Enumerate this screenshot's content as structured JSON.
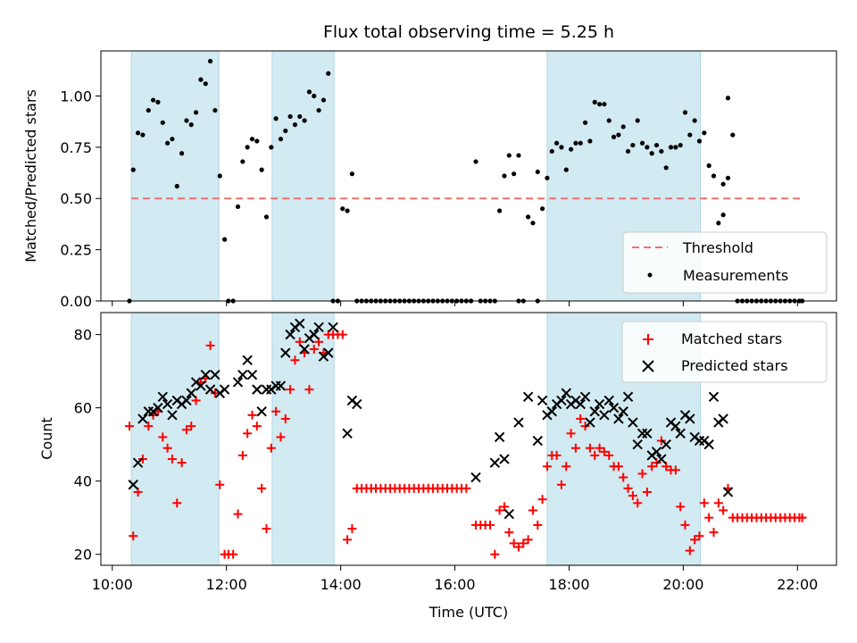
{
  "chart_data": [
    {
      "type": "scatter",
      "title": "Flux total observing time = 5.25 h",
      "xlabel": "",
      "ylabel": "Matched/Predicted stars",
      "ylim": [
        0,
        1.22
      ],
      "yticks": [
        "0.00",
        "0.25",
        "0.50",
        "0.75",
        "1.00"
      ],
      "ytick_values": [
        0,
        0.25,
        0.5,
        0.75,
        1.0
      ],
      "legend_position": "lower-right",
      "threshold": {
        "name": "Threshold",
        "value": 0.5,
        "x_range": [
          "10:20",
          "22:05"
        ],
        "color": "#f07070"
      },
      "series": [
        {
          "name": "Measurements",
          "color": "#000000",
          "marker": "dot",
          "x": [
            "10:18",
            "10:22",
            "10:27",
            "10:32",
            "10:38",
            "10:43",
            "10:48",
            "10:53",
            "10:58",
            "11:03",
            "11:08",
            "11:13",
            "11:18",
            "11:23",
            "11:28",
            "11:33",
            "11:38",
            "11:43",
            "11:48",
            "11:53",
            "11:58",
            "12:02",
            "12:07",
            "12:12",
            "12:17",
            "12:22",
            "12:27",
            "12:32",
            "12:37",
            "12:42",
            "12:47",
            "12:52",
            "12:57",
            "13:02",
            "13:07",
            "13:12",
            "13:17",
            "13:22",
            "13:27",
            "13:32",
            "13:37",
            "13:42",
            "13:47",
            "13:52",
            "13:57",
            "14:02",
            "14:07",
            "14:12",
            "14:17",
            "14:22",
            "16:22",
            "16:42",
            "16:47",
            "16:52",
            "16:57",
            "17:02",
            "17:07",
            "17:12",
            "17:17",
            "17:22",
            "17:27",
            "17:32",
            "17:37",
            "17:42",
            "17:47",
            "17:52",
            "17:57",
            "18:02",
            "18:07",
            "18:12",
            "18:17",
            "18:22",
            "18:27",
            "18:32",
            "18:37",
            "18:42",
            "18:47",
            "18:52",
            "18:57",
            "19:02",
            "19:07",
            "19:12",
            "19:17",
            "19:22",
            "19:27",
            "19:32",
            "19:37",
            "19:42",
            "19:47",
            "19:52",
            "19:57",
            "20:02",
            "20:07",
            "20:12",
            "20:17",
            "20:22",
            "20:27",
            "20:32",
            "20:37",
            "20:42",
            "20:47"
          ],
          "y": [
            0.0,
            0.64,
            0.82,
            0.81,
            0.93,
            0.98,
            0.97,
            0.87,
            0.77,
            0.79,
            0.56,
            0.72,
            0.88,
            0.86,
            0.92,
            1.08,
            1.06,
            1.17,
            0.93,
            0.61,
            0.3,
            0.0,
            0.0,
            0.46,
            0.68,
            0.75,
            0.79,
            0.78,
            0.64,
            0.41,
            0.75,
            0.89,
            0.79,
            0.83,
            0.9,
            0.86,
            0.9,
            0.88,
            1.02,
            1.0,
            0.93,
            0.98,
            1.11,
            0.0,
            0.0,
            0.45,
            0.44,
            0.62,
            0.0,
            0.0,
            0.68,
            0.0,
            0.44,
            0.61,
            0.71,
            0.62,
            0.71,
            0.0,
            0.41,
            0.38,
            0.63,
            0.45,
            0.6,
            0.73,
            0.77,
            0.75,
            0.64,
            0.74,
            0.77,
            0.77,
            0.87,
            0.78,
            0.97,
            0.96,
            0.96,
            0.88,
            0.8,
            0.81,
            0.85,
            0.73,
            0.76,
            0.88,
            0.77,
            0.75,
            0.72,
            0.76,
            0.73,
            0.65,
            0.75,
            0.75,
            0.76,
            0.92,
            0.81,
            0.88,
            0.78,
            0.82,
            0.66,
            0.61,
            0.38,
            0.42,
            0.6
          ]
        },
        {
          "name": "",
          "color": "#000000",
          "marker": "dot",
          "x": [
            "14:27",
            "14:32",
            "14:37",
            "14:42",
            "14:47",
            "14:52",
            "14:57",
            "15:02",
            "15:07",
            "15:12",
            "15:17",
            "15:22",
            "15:27",
            "15:32",
            "15:37",
            "15:42",
            "15:47",
            "15:52",
            "15:57",
            "16:02",
            "16:07",
            "16:12",
            "16:17",
            "16:27",
            "16:32",
            "16:37",
            "17:07",
            "17:27",
            "20:42",
            "20:47",
            "20:52",
            "20:57",
            "21:02",
            "21:07",
            "21:12",
            "21:17",
            "21:22",
            "21:27",
            "21:32",
            "21:37",
            "21:42",
            "21:47",
            "21:52",
            "21:57",
            "22:02",
            "22:05"
          ],
          "y": [
            0,
            0,
            0,
            0,
            0,
            0,
            0,
            0,
            0,
            0,
            0,
            0,
            0,
            0,
            0,
            0,
            0,
            0,
            0,
            0,
            0,
            0,
            0,
            0,
            0,
            0,
            0,
            0,
            0.57,
            0.99,
            0.81,
            0,
            0,
            0,
            0,
            0,
            0,
            0,
            0,
            0,
            0,
            0,
            0,
            0,
            0,
            0
          ]
        }
      ],
      "shaded_intervals": [
        [
          "10:20",
          "11:52"
        ],
        [
          "12:48",
          "13:53"
        ],
        [
          "17:37",
          "20:18"
        ]
      ],
      "shade_color": "#add8e6"
    },
    {
      "type": "scatter",
      "title": "",
      "xlabel": "Time (UTC)",
      "ylabel": "Count",
      "ylim": [
        17,
        86
      ],
      "yticks": [
        "20",
        "40",
        "60",
        "80"
      ],
      "ytick_values": [
        20,
        40,
        60,
        80
      ],
      "xticks": [
        "10:00",
        "12:00",
        "14:00",
        "16:00",
        "18:00",
        "20:00",
        "22:00"
      ],
      "xtick_values": [
        "10:00",
        "12:00",
        "14:00",
        "16:00",
        "18:00",
        "20:00",
        "22:00"
      ],
      "xlim": [
        "09:48",
        "22:41"
      ],
      "legend_position": "upper-right",
      "series": [
        {
          "name": "Matched stars",
          "color": "#ff0000",
          "marker": "plus",
          "x": [
            "10:18",
            "10:22",
            "10:27",
            "10:32",
            "10:38",
            "10:43",
            "10:48",
            "10:53",
            "10:58",
            "11:03",
            "11:08",
            "11:13",
            "11:18",
            "11:23",
            "11:28",
            "11:33",
            "11:38",
            "11:43",
            "11:48",
            "11:53",
            "11:58",
            "12:02",
            "12:07",
            "12:12",
            "12:17",
            "12:22",
            "12:27",
            "12:32",
            "12:37",
            "12:42",
            "12:47",
            "12:52",
            "12:57",
            "13:02",
            "13:07",
            "13:12",
            "13:17",
            "13:22",
            "13:27",
            "13:32",
            "13:37",
            "13:42",
            "13:47",
            "13:52",
            "13:57",
            "14:02",
            "14:07",
            "14:12",
            "14:17",
            "16:42",
            "16:47",
            "16:52",
            "16:57",
            "17:02",
            "17:07",
            "17:12",
            "17:17",
            "17:22",
            "17:27",
            "17:32",
            "17:37",
            "17:42",
            "17:47",
            "17:52",
            "17:57",
            "18:02",
            "18:07",
            "18:12",
            "18:17",
            "18:22",
            "18:27",
            "18:32",
            "18:37",
            "18:42",
            "18:47",
            "18:52",
            "18:57",
            "19:02",
            "19:07",
            "19:12",
            "19:17",
            "19:22",
            "19:27",
            "19:32",
            "19:37",
            "19:42",
            "19:47",
            "19:52",
            "19:57",
            "20:02",
            "20:07",
            "20:12",
            "20:17",
            "20:22",
            "20:27",
            "20:32",
            "20:37",
            "20:42",
            "20:47"
          ],
          "y": [
            55,
            25,
            37,
            46,
            55,
            58,
            59,
            52,
            49,
            46,
            34,
            45,
            54,
            55,
            62,
            67,
            68,
            77,
            64,
            39,
            20,
            20,
            20,
            31,
            47,
            53,
            58,
            55,
            38,
            27,
            49,
            59,
            52,
            57,
            65,
            73,
            78,
            75,
            65,
            76,
            78,
            75,
            80,
            80,
            80,
            80,
            24,
            27,
            38,
            20,
            32,
            33,
            26,
            23,
            22,
            23,
            24,
            32,
            28,
            35,
            44,
            47,
            47,
            39,
            44,
            53,
            49,
            57,
            55,
            49,
            47,
            49,
            48,
            47,
            44,
            44,
            41,
            38,
            36,
            34,
            42,
            37,
            44,
            45,
            51,
            44,
            43,
            43,
            33,
            28,
            21,
            24,
            25,
            34,
            30,
            26,
            34,
            32,
            38
          ]
        },
        {
          "name": "",
          "color": "#ff0000",
          "marker": "plus",
          "x": [
            "14:22",
            "14:27",
            "14:32",
            "14:37",
            "14:42",
            "14:47",
            "14:52",
            "14:57",
            "15:02",
            "15:07",
            "15:12",
            "15:17",
            "15:22",
            "15:27",
            "15:32",
            "15:37",
            "15:42",
            "15:47",
            "15:52",
            "15:57",
            "16:02",
            "16:07",
            "16:12",
            "16:22",
            "16:27",
            "16:32",
            "16:37",
            "20:52",
            "20:57",
            "21:02",
            "21:07",
            "21:12",
            "21:17",
            "21:22",
            "21:27",
            "21:32",
            "21:37",
            "21:42",
            "21:47",
            "21:52",
            "21:57",
            "22:02",
            "22:05"
          ],
          "y": [
            38,
            38,
            38,
            38,
            38,
            38,
            38,
            38,
            38,
            38,
            38,
            38,
            38,
            38,
            38,
            38,
            38,
            38,
            38,
            38,
            38,
            38,
            38,
            28,
            28,
            28,
            28,
            30,
            30,
            30,
            30,
            30,
            30,
            30,
            30,
            30,
            30,
            30,
            30,
            30,
            30,
            30,
            30
          ]
        },
        {
          "name": "Predicted stars",
          "color": "#000000",
          "marker": "x",
          "x": [
            "10:22",
            "10:27",
            "10:32",
            "10:38",
            "10:43",
            "10:48",
            "10:53",
            "10:58",
            "11:03",
            "11:08",
            "11:13",
            "11:18",
            "11:23",
            "11:28",
            "11:33",
            "11:38",
            "11:43",
            "11:48",
            "11:53",
            "11:58",
            "12:12",
            "12:17",
            "12:22",
            "12:27",
            "12:32",
            "12:37",
            "12:42",
            "12:47",
            "12:52",
            "12:57",
            "13:02",
            "13:07",
            "13:12",
            "13:17",
            "13:22",
            "13:27",
            "13:32",
            "13:37",
            "13:42",
            "13:47",
            "13:52",
            "14:07",
            "14:12",
            "14:17",
            "16:22",
            "16:42",
            "16:47",
            "16:52",
            "16:57",
            "17:07",
            "17:17",
            "17:27",
            "17:32",
            "17:37",
            "17:42",
            "17:47",
            "17:52",
            "17:57",
            "18:02",
            "18:07",
            "18:12",
            "18:17",
            "18:22",
            "18:27",
            "18:32",
            "18:37",
            "18:42",
            "18:47",
            "18:52",
            "18:57",
            "19:02",
            "19:07",
            "19:12",
            "19:17",
            "19:22",
            "19:27",
            "19:32",
            "19:37",
            "19:42",
            "19:47",
            "19:52",
            "19:57",
            "20:02",
            "20:07",
            "20:12",
            "20:17",
            "20:22",
            "20:27",
            "20:32",
            "20:37",
            "20:42",
            "20:47"
          ],
          "y": [
            39,
            45,
            57,
            59,
            59,
            60,
            63,
            61,
            58,
            62,
            61,
            62,
            64,
            67,
            66,
            69,
            65,
            69,
            64,
            65,
            67,
            69,
            73,
            69,
            65,
            59,
            65,
            65,
            66,
            66,
            75,
            80,
            82,
            83,
            76,
            79,
            80,
            82,
            74,
            75,
            82,
            53,
            62,
            61,
            41,
            45,
            52,
            46,
            31,
            56,
            63,
            51,
            62,
            58,
            59,
            61,
            62,
            64,
            61,
            62,
            61,
            63,
            56,
            59,
            61,
            58,
            62,
            60,
            57,
            59,
            63,
            56,
            50,
            53,
            53,
            47,
            48,
            46,
            50,
            56,
            55,
            53,
            58,
            57,
            52,
            51,
            51,
            50,
            63,
            56,
            57,
            37
          ]
        }
      ],
      "shaded_intervals": [
        [
          "10:20",
          "11:52"
        ],
        [
          "12:48",
          "13:53"
        ],
        [
          "17:37",
          "20:18"
        ]
      ],
      "shade_color": "#add8e6"
    }
  ]
}
